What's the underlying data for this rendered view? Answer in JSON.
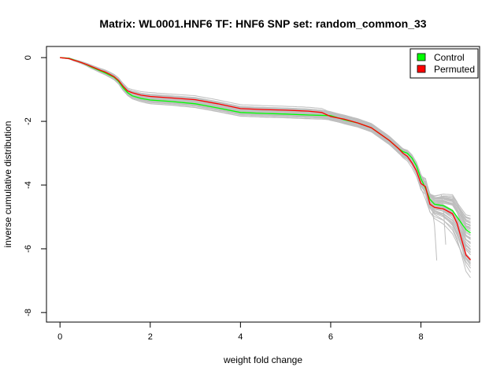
{
  "chart_data": {
    "type": "line",
    "title": "Matrix: WL0001.HNF6 TF: HNF6 SNP set: random_common_33",
    "xlabel": "weight fold change",
    "ylabel": "inverse cumulative distribution",
    "xlim": [
      -0.3,
      9.3
    ],
    "ylim": [
      -8.3,
      0.35
    ],
    "xticks": [
      0,
      2,
      4,
      6,
      8
    ],
    "yticks": [
      0,
      -2,
      -4,
      -6,
      -8
    ],
    "grid": false,
    "legend": {
      "position": "top-right",
      "entries": [
        "Control",
        "Permuted"
      ]
    },
    "colors": {
      "background_curves": "#bebebe",
      "Control": "#00ff00",
      "Permuted": "#ff0000"
    },
    "series": [
      {
        "name": "Control",
        "x": [
          0,
          0.2,
          0.3,
          0.4,
          0.5,
          0.6,
          0.7,
          0.8,
          0.9,
          1.0,
          1.1,
          1.2,
          1.3,
          1.4,
          1.5,
          1.6,
          1.8,
          2.0,
          2.5,
          3.0,
          3.5,
          4.0,
          4.5,
          5.0,
          5.5,
          6.0,
          6.3,
          6.6,
          6.9,
          7.1,
          7.3,
          7.5,
          7.6,
          7.7,
          7.8,
          7.9,
          8.0,
          8.1,
          8.2,
          8.3,
          8.5,
          8.7,
          8.8,
          8.9,
          9.0,
          9.1
        ],
        "y": [
          0,
          -0.02,
          -0.07,
          -0.12,
          -0.17,
          -0.23,
          -0.3,
          -0.36,
          -0.42,
          -0.48,
          -0.55,
          -0.62,
          -0.75,
          -0.95,
          -1.1,
          -1.2,
          -1.28,
          -1.33,
          -1.38,
          -1.45,
          -1.58,
          -1.72,
          -1.75,
          -1.77,
          -1.8,
          -1.82,
          -1.95,
          -2.05,
          -2.2,
          -2.4,
          -2.6,
          -2.85,
          -2.95,
          -3.0,
          -3.15,
          -3.4,
          -3.8,
          -4.1,
          -4.45,
          -4.6,
          -4.65,
          -4.8,
          -5.0,
          -5.2,
          -5.4,
          -5.5
        ]
      },
      {
        "name": "Permuted",
        "x": [
          0,
          0.2,
          0.3,
          0.4,
          0.5,
          0.6,
          0.7,
          0.8,
          0.9,
          1.0,
          1.1,
          1.2,
          1.3,
          1.4,
          1.5,
          1.6,
          1.8,
          2.0,
          2.5,
          3.0,
          3.5,
          4.0,
          4.5,
          5.0,
          5.5,
          5.8,
          6.0,
          6.3,
          6.6,
          6.9,
          7.1,
          7.3,
          7.5,
          7.6,
          7.7,
          7.8,
          7.9,
          8.0,
          8.1,
          8.2,
          8.3,
          8.5,
          8.7,
          8.8,
          8.9,
          9.0,
          9.1
        ],
        "y": [
          0,
          -0.03,
          -0.08,
          -0.12,
          -0.17,
          -0.22,
          -0.28,
          -0.34,
          -0.4,
          -0.45,
          -0.52,
          -0.6,
          -0.72,
          -0.9,
          -1.05,
          -1.1,
          -1.18,
          -1.22,
          -1.27,
          -1.32,
          -1.45,
          -1.6,
          -1.63,
          -1.65,
          -1.68,
          -1.72,
          -1.85,
          -1.93,
          -2.05,
          -2.2,
          -2.4,
          -2.6,
          -2.85,
          -3.0,
          -3.1,
          -3.3,
          -3.55,
          -3.95,
          -4.05,
          -4.6,
          -4.7,
          -4.75,
          -4.9,
          -5.2,
          -5.7,
          -6.2,
          -6.35
        ]
      }
    ]
  },
  "legend_labels": {
    "control": "Control",
    "permuted": "Permuted"
  }
}
